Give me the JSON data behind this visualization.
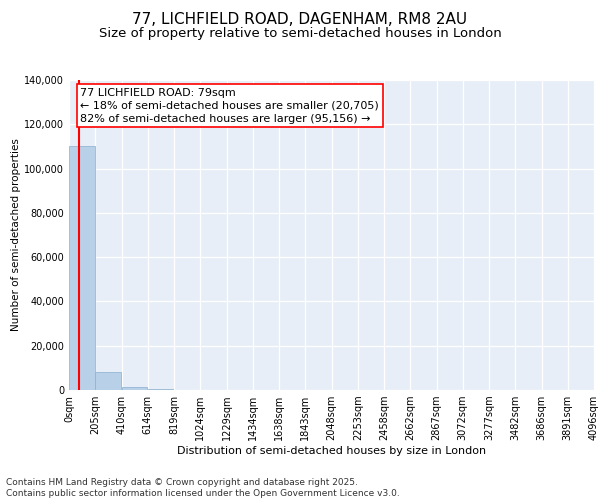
{
  "title": "77, LICHFIELD ROAD, DAGENHAM, RM8 2AU",
  "subtitle": "Size of property relative to semi-detached houses in London",
  "xlabel": "Distribution of semi-detached houses by size in London",
  "ylabel": "Number of semi-detached properties",
  "property_size": 79,
  "pct_smaller": 18,
  "pct_larger": 82,
  "n_smaller": 20705,
  "n_larger": 95156,
  "bar_color": "#b8d0e8",
  "bar_edgecolor": "#8ab0d0",
  "redline_color": "red",
  "annotation_box_edgecolor": "red",
  "background_color": "#e8eef8",
  "ylim": [
    0,
    140000
  ],
  "yticks": [
    0,
    20000,
    40000,
    60000,
    80000,
    100000,
    120000,
    140000
  ],
  "xtick_labels": [
    "0sqm",
    "205sqm",
    "410sqm",
    "614sqm",
    "819sqm",
    "1024sqm",
    "1229sqm",
    "1434sqm",
    "1638sqm",
    "1843sqm",
    "2048sqm",
    "2253sqm",
    "2458sqm",
    "2662sqm",
    "2867sqm",
    "3072sqm",
    "3277sqm",
    "3482sqm",
    "3686sqm",
    "3891sqm",
    "4096sqm"
  ],
  "bar_heights": [
    110000,
    8000,
    1200,
    400,
    150,
    60,
    25,
    12,
    6,
    3,
    2,
    1,
    1,
    0,
    0,
    0,
    0,
    0,
    0,
    0
  ],
  "n_bins": 20,
  "bin_width": 204.8,
  "footer_line1": "Contains HM Land Registry data © Crown copyright and database right 2025.",
  "footer_line2": "Contains public sector information licensed under the Open Government Licence v3.0.",
  "title_fontsize": 11,
  "subtitle_fontsize": 9.5,
  "tick_fontsize": 7,
  "annotation_fontsize": 8,
  "footer_fontsize": 6.5,
  "ylabel_fontsize": 7.5,
  "xlabel_fontsize": 8
}
